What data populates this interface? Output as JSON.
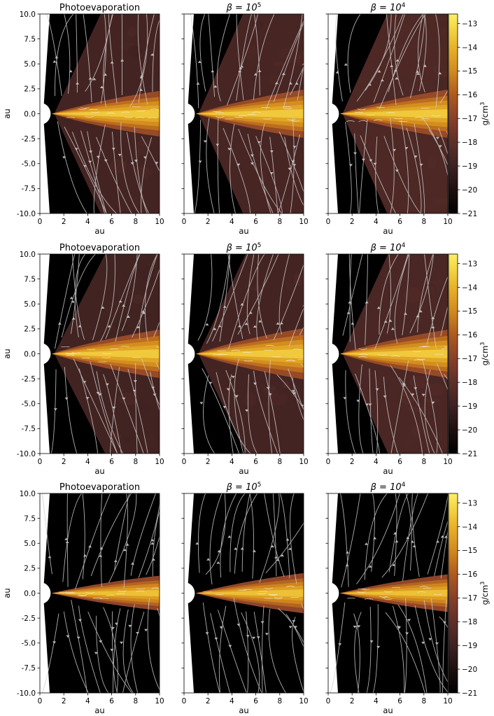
{
  "figure": {
    "colorbar": {
      "label_main": "g/cm",
      "label_sup": "3",
      "ticks": [
        "-13",
        "-14",
        "-15",
        "-16",
        "-17",
        "-18",
        "-19",
        "-20",
        "-21"
      ],
      "range": [
        -21,
        -12.6
      ],
      "colormap_stops": [
        {
          "v": -21,
          "color": "#000000"
        },
        {
          "v": -20,
          "color": "#1e0f0f"
        },
        {
          "v": -19,
          "color": "#3e2222"
        },
        {
          "v": -18,
          "color": "#5e2f29"
        },
        {
          "v": -17,
          "color": "#86402a"
        },
        {
          "v": -16,
          "color": "#ae5a20"
        },
        {
          "v": -15,
          "color": "#d18a1e"
        },
        {
          "v": -14,
          "color": "#e8b22a"
        },
        {
          "v": -13,
          "color": "#f7df4d"
        },
        {
          "v": -12.6,
          "color": "#fcee6a"
        }
      ]
    },
    "rows": [
      {
        "titles": [
          {
            "main": "Photoevaporation",
            "sup": ""
          },
          {
            "main": "β = 10",
            "sup": "5"
          },
          {
            "main": "β = 10",
            "sup": "4"
          }
        ]
      },
      {
        "titles": [
          {
            "main": "Photoevaporation",
            "sup": ""
          },
          {
            "main": "β = 10",
            "sup": "5"
          },
          {
            "main": "β = 10",
            "sup": "4"
          }
        ]
      },
      {
        "titles": [
          {
            "main": "Photoevaporation",
            "sup": ""
          },
          {
            "main": "β = 10",
            "sup": "5"
          },
          {
            "main": "β = 10",
            "sup": "4"
          }
        ]
      }
    ],
    "xlabel": "au",
    "ylabel": "au",
    "x_ticks": [
      "0",
      "2",
      "4",
      "6",
      "8",
      "10"
    ],
    "y_ticks": [
      "10.0",
      "7.5",
      "5.0",
      "2.5",
      "0.0",
      "-2.5",
      "-5.0",
      "-7.5",
      "-10.0"
    ]
  },
  "chart_data": {
    "type": "heatmap",
    "description_units": "log10 density (g/cm^3) with streamlines",
    "xlim": [
      0,
      10
    ],
    "ylim": [
      -10,
      10
    ],
    "clim": [
      -21,
      -12.6
    ],
    "panels": [
      {
        "row": 0,
        "col": 0,
        "title": "Photoevaporation",
        "disk_halfopen_at_10au": 1.7,
        "wind_opening": 0.95,
        "wind_logrho": -18.7,
        "disk_midplane_logrho": -14.0
      },
      {
        "row": 0,
        "col": 1,
        "title": "β = 10^5",
        "disk_halfopen_at_10au": 1.8,
        "wind_opening": 1.05,
        "wind_logrho": -18.6,
        "disk_midplane_logrho": -14.0
      },
      {
        "row": 0,
        "col": 2,
        "title": "β = 10^4",
        "disk_halfopen_at_10au": 1.8,
        "wind_opening": 1.05,
        "wind_logrho": -18.4,
        "disk_midplane_logrho": -14.0
      },
      {
        "row": 1,
        "col": 0,
        "title": "Photoevaporation",
        "disk_halfopen_at_10au": 1.8,
        "wind_opening": 0.7,
        "wind_logrho": -18.8,
        "disk_midplane_logrho": -14.0
      },
      {
        "row": 1,
        "col": 1,
        "title": "β = 10^5",
        "disk_halfopen_at_10au": 1.9,
        "wind_opening": 0.9,
        "wind_logrho": -18.7,
        "disk_midplane_logrho": -14.0
      },
      {
        "row": 1,
        "col": 2,
        "title": "β = 10^4",
        "disk_halfopen_at_10au": 1.8,
        "wind_opening": 1.0,
        "wind_logrho": -18.5,
        "disk_midplane_logrho": -14.0
      },
      {
        "row": 2,
        "col": 0,
        "title": "Photoevaporation",
        "disk_halfopen_at_10au": 1.3,
        "wind_opening": 0.0,
        "wind_logrho": -21,
        "disk_midplane_logrho": -14.2
      },
      {
        "row": 2,
        "col": 1,
        "title": "β = 10^5",
        "disk_halfopen_at_10au": 1.5,
        "wind_opening": 0.0,
        "wind_logrho": -21,
        "disk_midplane_logrho": -14.2
      },
      {
        "row": 2,
        "col": 2,
        "title": "β = 10^4",
        "disk_halfopen_at_10au": 1.4,
        "wind_opening": 0.0,
        "wind_logrho": -21,
        "disk_midplane_logrho": -14.2
      }
    ]
  }
}
